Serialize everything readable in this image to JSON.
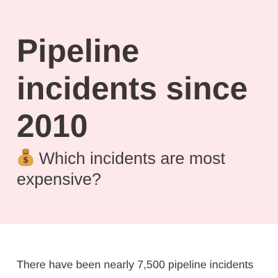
{
  "hero": {
    "title": "Pipeline incidents since 2010",
    "subtitle_icon": "money-bag-icon",
    "subtitle": "Which incidents are most expensive?",
    "background_color": "#fde8ec"
  },
  "article": {
    "intro_visible": "There have been nearly 7,500 pipeline incidents"
  }
}
